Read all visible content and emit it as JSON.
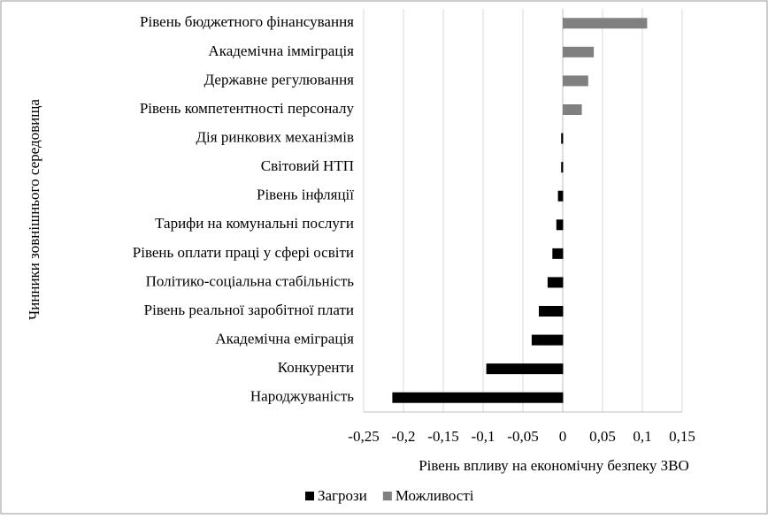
{
  "chart_data": {
    "type": "hbar",
    "y_axis_label": "Чинники зовнішнього середовища",
    "x_axis_label": "Рівень впливу на економічну безпеку ЗВО",
    "categories": [
      "Рівень бюджетного фінансування",
      "Академічна імміграція",
      "Державне регулювання",
      "Рівень компетентності персоналу",
      "Дія ринкових механізмів",
      "Світовий НТП",
      "Рівень інфляції",
      "Тарифи на комунальні послуги",
      "Рівень оплати праці у сфері освіти",
      "Політико-соціальна стабільність",
      "Рівень реальної заробітної плати",
      "Академічна еміграція",
      "Конкуренти",
      "Народжуваність"
    ],
    "series": [
      {
        "name": "Загрози",
        "color": "#000000",
        "values": [
          0,
          0,
          0,
          0,
          -0.002,
          -0.002,
          -0.006,
          -0.008,
          -0.013,
          -0.019,
          -0.03,
          -0.039,
          -0.096,
          -0.214
        ]
      },
      {
        "name": "Можливості",
        "color": "#808080",
        "values": [
          0.106,
          0.039,
          0.032,
          0.024,
          0.001,
          0.001,
          0,
          0,
          0,
          0,
          0,
          0,
          0,
          0
        ]
      }
    ],
    "xlim": [
      -0.25,
      0.15
    ],
    "xticks": [
      {
        "value": -0.25,
        "label": "-0,25"
      },
      {
        "value": -0.2,
        "label": "-0,2"
      },
      {
        "value": -0.15,
        "label": "-0,15"
      },
      {
        "value": -0.1,
        "label": "-0,1"
      },
      {
        "value": -0.05,
        "label": "-0,05"
      },
      0,
      {
        "value": 0.05,
        "label": "0,05"
      },
      {
        "value": 0.1,
        "label": "0,1"
      },
      {
        "value": 0.15,
        "label": "0,15"
      }
    ],
    "grid": true,
    "legend": "bottom"
  }
}
